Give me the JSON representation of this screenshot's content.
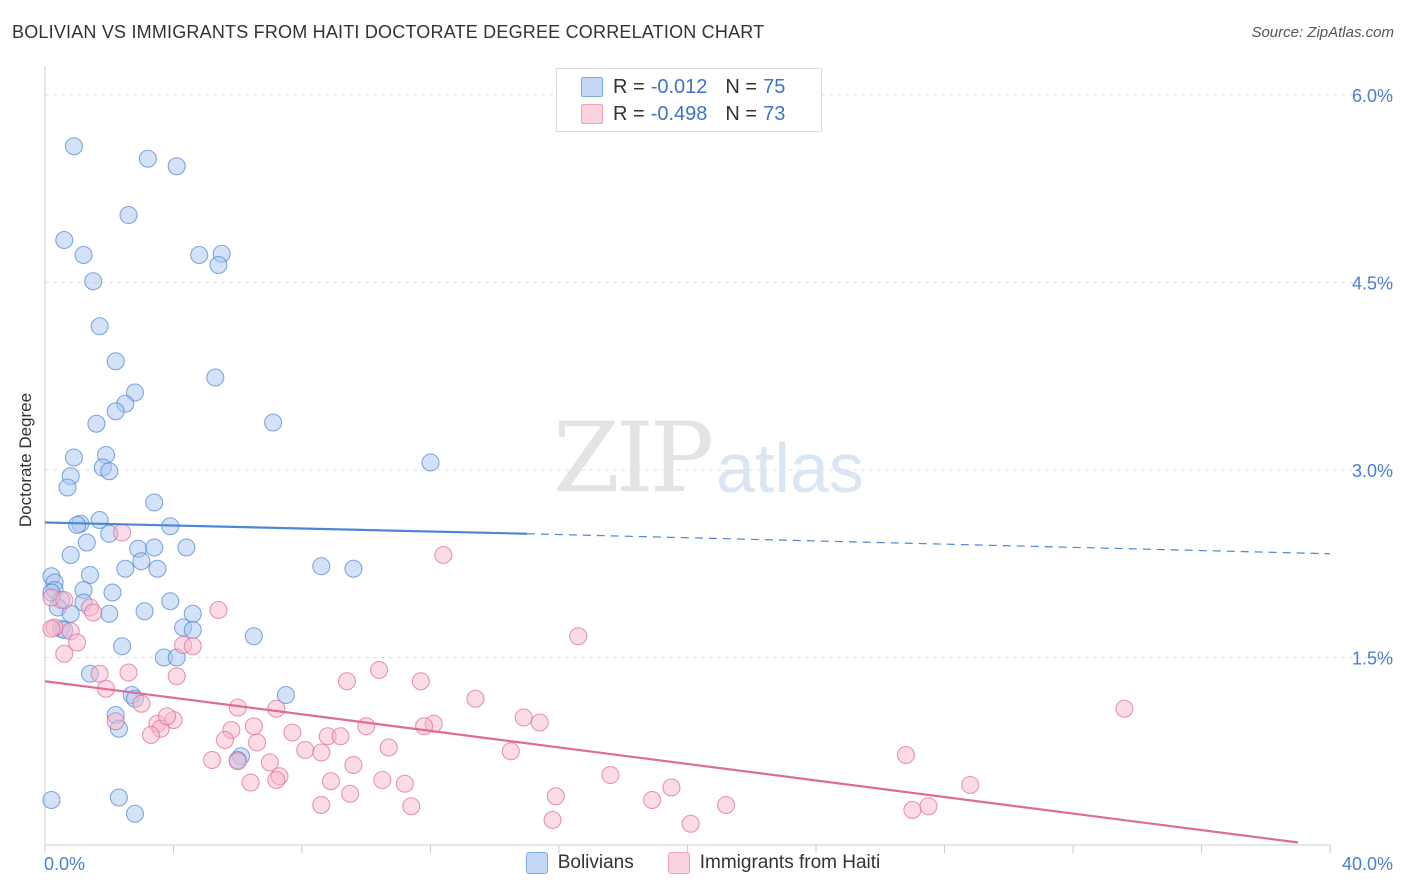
{
  "title": "BOLIVIAN VS IMMIGRANTS FROM HAITI DOCTORATE DEGREE CORRELATION CHART",
  "source": "Source: ZipAtlas.com",
  "watermark": {
    "zip": "ZIP",
    "atlas": "atlas"
  },
  "legend": {
    "rows": [
      {
        "r_label": "R =",
        "r_value": "-0.012",
        "n_label": "N =",
        "n_value": "75",
        "color": "#a9c6ef"
      },
      {
        "r_label": "R =",
        "r_value": "-0.498",
        "n_label": "N =",
        "n_value": "73",
        "color": "#f7b7cb"
      }
    ]
  },
  "bottom_legend": [
    "Bolivians",
    "Immigrants from Haiti"
  ],
  "chart_data": {
    "type": "scatter",
    "title": "BOLIVIAN VS IMMIGRANTS FROM HAITI DOCTORATE DEGREE CORRELATION CHART",
    "xlabel": "",
    "ylabel": "Doctorate Degree",
    "xlim": [
      0,
      40
    ],
    "ylim": [
      0,
      6.2
    ],
    "x_tick_labels": [
      "0.0%",
      "40.0%"
    ],
    "y_ticks": [
      1.5,
      3.0,
      4.5,
      6.0
    ],
    "y_tick_labels": [
      "1.5%",
      "3.0%",
      "4.5%",
      "6.0%"
    ],
    "series": [
      {
        "name": "Bolivians",
        "color": "#4d86d6",
        "fill": "#a9c6ef",
        "trend": {
          "x0": 0,
          "y0": 2.58,
          "x1": 15,
          "y1": 2.49,
          "x_end": 40,
          "y_end": 2.33
        },
        "points": [
          [
            0.9,
            5.59
          ],
          [
            3.2,
            5.49
          ],
          [
            4.1,
            5.43
          ],
          [
            2.6,
            5.04
          ],
          [
            0.6,
            4.84
          ],
          [
            1.2,
            4.72
          ],
          [
            4.8,
            4.72
          ],
          [
            5.5,
            4.73
          ],
          [
            5.4,
            4.64
          ],
          [
            1.5,
            4.51
          ],
          [
            1.7,
            4.15
          ],
          [
            2.2,
            3.87
          ],
          [
            5.3,
            3.74
          ],
          [
            2.8,
            3.62
          ],
          [
            2.5,
            3.53
          ],
          [
            2.2,
            3.47
          ],
          [
            1.6,
            3.37
          ],
          [
            7.1,
            3.38
          ],
          [
            0.9,
            3.1
          ],
          [
            1.9,
            3.12
          ],
          [
            1.8,
            3.02
          ],
          [
            2.0,
            2.99
          ],
          [
            12.0,
            3.06
          ],
          [
            0.8,
            2.95
          ],
          [
            0.7,
            2.86
          ],
          [
            3.4,
            2.74
          ],
          [
            1.7,
            2.6
          ],
          [
            1.1,
            2.57
          ],
          [
            1.0,
            2.56
          ],
          [
            3.9,
            2.55
          ],
          [
            2.0,
            2.49
          ],
          [
            1.3,
            2.42
          ],
          [
            0.8,
            2.32
          ],
          [
            2.9,
            2.37
          ],
          [
            3.4,
            2.38
          ],
          [
            4.4,
            2.38
          ],
          [
            3.0,
            2.27
          ],
          [
            8.6,
            2.23
          ],
          [
            9.6,
            2.21
          ],
          [
            2.5,
            2.21
          ],
          [
            3.5,
            2.21
          ],
          [
            0.2,
            2.15
          ],
          [
            1.4,
            2.16
          ],
          [
            0.3,
            2.1
          ],
          [
            0.3,
            2.04
          ],
          [
            1.2,
            2.04
          ],
          [
            2.1,
            2.02
          ],
          [
            0.2,
            2.02
          ],
          [
            0.5,
            1.96
          ],
          [
            3.9,
            1.95
          ],
          [
            1.2,
            1.94
          ],
          [
            0.4,
            1.9
          ],
          [
            0.8,
            1.85
          ],
          [
            2.0,
            1.85
          ],
          [
            3.1,
            1.87
          ],
          [
            4.6,
            1.85
          ],
          [
            0.5,
            1.73
          ],
          [
            4.3,
            1.74
          ],
          [
            4.6,
            1.72
          ],
          [
            0.6,
            1.72
          ],
          [
            6.5,
            1.67
          ],
          [
            2.4,
            1.59
          ],
          [
            3.7,
            1.5
          ],
          [
            4.1,
            1.5
          ],
          [
            1.4,
            1.37
          ],
          [
            7.5,
            1.2
          ],
          [
            2.7,
            1.2
          ],
          [
            2.8,
            1.17
          ],
          [
            2.2,
            1.04
          ],
          [
            2.3,
            0.93
          ],
          [
            6.1,
            0.71
          ],
          [
            6.0,
            0.68
          ],
          [
            2.3,
            0.38
          ],
          [
            2.8,
            0.25
          ],
          [
            0.2,
            0.36
          ]
        ]
      },
      {
        "name": "Immigrants from Haiti",
        "color": "#e06b95",
        "fill": "#f7b7cb",
        "trend": {
          "x0": 0,
          "y0": 1.31,
          "x1": 39,
          "y1": 0.02
        },
        "points": [
          [
            2.4,
            2.5
          ],
          [
            12.4,
            2.32
          ],
          [
            0.2,
            1.98
          ],
          [
            0.6,
            1.96
          ],
          [
            1.4,
            1.9
          ],
          [
            1.5,
            1.86
          ],
          [
            5.4,
            1.88
          ],
          [
            0.3,
            1.74
          ],
          [
            0.8,
            1.71
          ],
          [
            1.0,
            1.62
          ],
          [
            4.3,
            1.6
          ],
          [
            4.6,
            1.59
          ],
          [
            0.6,
            1.53
          ],
          [
            16.6,
            1.67
          ],
          [
            10.4,
            1.4
          ],
          [
            2.6,
            1.38
          ],
          [
            1.7,
            1.37
          ],
          [
            4.1,
            1.35
          ],
          [
            9.4,
            1.31
          ],
          [
            11.7,
            1.31
          ],
          [
            1.9,
            1.25
          ],
          [
            13.4,
            1.17
          ],
          [
            3.0,
            1.13
          ],
          [
            6.0,
            1.1
          ],
          [
            7.2,
            1.09
          ],
          [
            33.6,
            1.09
          ],
          [
            4.0,
            1.0
          ],
          [
            14.9,
            1.02
          ],
          [
            15.4,
            0.98
          ],
          [
            12.1,
            0.97
          ],
          [
            2.2,
            0.99
          ],
          [
            3.5,
            0.97
          ],
          [
            3.6,
            0.93
          ],
          [
            11.8,
            0.95
          ],
          [
            6.5,
            0.95
          ],
          [
            10.0,
            0.95
          ],
          [
            5.8,
            0.92
          ],
          [
            7.7,
            0.9
          ],
          [
            8.8,
            0.87
          ],
          [
            3.3,
            0.88
          ],
          [
            9.2,
            0.87
          ],
          [
            5.6,
            0.84
          ],
          [
            6.6,
            0.82
          ],
          [
            10.7,
            0.78
          ],
          [
            8.1,
            0.76
          ],
          [
            8.6,
            0.74
          ],
          [
            14.5,
            0.75
          ],
          [
            26.8,
            0.72
          ],
          [
            5.2,
            0.68
          ],
          [
            6.0,
            0.67
          ],
          [
            7.0,
            0.66
          ],
          [
            9.6,
            0.64
          ],
          [
            7.3,
            0.55
          ],
          [
            17.6,
            0.56
          ],
          [
            10.5,
            0.52
          ],
          [
            6.4,
            0.5
          ],
          [
            8.9,
            0.51
          ],
          [
            11.2,
            0.49
          ],
          [
            28.8,
            0.48
          ],
          [
            7.2,
            0.52
          ],
          [
            19.5,
            0.46
          ],
          [
            9.5,
            0.41
          ],
          [
            15.9,
            0.39
          ],
          [
            18.9,
            0.36
          ],
          [
            21.2,
            0.32
          ],
          [
            27.5,
            0.31
          ],
          [
            8.6,
            0.32
          ],
          [
            11.4,
            0.31
          ],
          [
            27.0,
            0.28
          ],
          [
            15.8,
            0.2
          ],
          [
            20.1,
            0.17
          ],
          [
            0.2,
            1.73
          ],
          [
            3.8,
            1.03
          ]
        ]
      }
    ]
  }
}
